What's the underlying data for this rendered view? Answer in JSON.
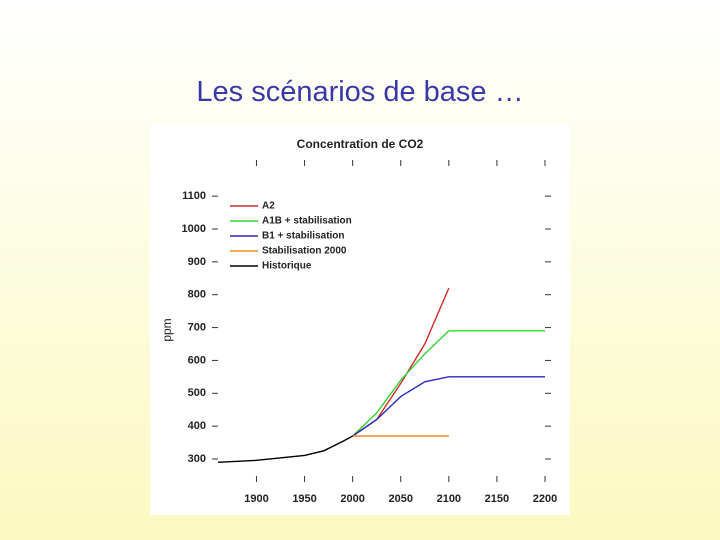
{
  "slide": {
    "title": "Les scénarios de base …"
  },
  "chart_data": {
    "type": "line",
    "title": "Concentration de CO2",
    "y_label": "ppm",
    "xlim": [
      1860,
      2200
    ],
    "ylim": [
      230,
      1210
    ],
    "xticks": [
      1900,
      1950,
      2000,
      2050,
      2100,
      2150,
      2200
    ],
    "yticks": [
      300,
      400,
      500,
      600,
      700,
      800,
      900,
      1000,
      1100
    ],
    "legend": "upper left",
    "series": [
      {
        "name": "A2",
        "color": "#d42a2a",
        "x": [
          2000,
          2025,
          2050,
          2075,
          2100
        ],
        "values": [
          370,
          420,
          530,
          650,
          820
        ]
      },
      {
        "name": "A1B + stabilisation",
        "color": "#33d633",
        "x": [
          2000,
          2025,
          2050,
          2075,
          2100,
          2200
        ],
        "values": [
          370,
          440,
          540,
          620,
          690,
          690
        ]
      },
      {
        "name": "B1 + stabilisation",
        "color": "#2a2ac0",
        "x": [
          2000,
          2025,
          2050,
          2075,
          2100,
          2200
        ],
        "values": [
          370,
          420,
          490,
          535,
          550,
          550
        ]
      },
      {
        "name": "Stabilisation 2000",
        "color": "#ee8a22",
        "x": [
          2000,
          2100
        ],
        "values": [
          370,
          370
        ]
      },
      {
        "name": "Historique",
        "color": "#000000",
        "x": [
          1860,
          1900,
          1950,
          1970,
          1990,
          2000
        ],
        "values": [
          290,
          296,
          311,
          325,
          354,
          370
        ]
      }
    ]
  }
}
